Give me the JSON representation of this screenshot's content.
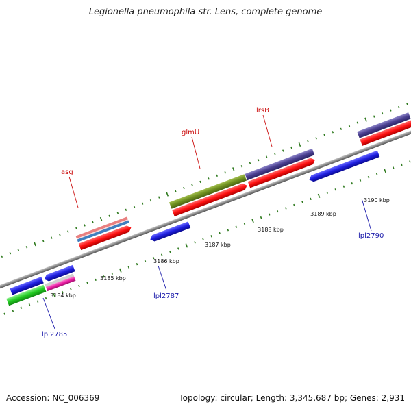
{
  "title": "Legionella pneumophila str. Lens, complete genome",
  "footer": {
    "accession": "Accession: NC_006369",
    "summary": "Topology: circular; Length: 3,345,687 bp; Genes: 2,931"
  },
  "colors": {
    "backbone": "#8c8c8c",
    "tick": "#2f7a1f",
    "label_top": "#cc1111",
    "label_bottom": "#1a1aaa",
    "cds_red": "#ff1111",
    "gene_blue": "#1f1fe0",
    "olive": "#6e8f1f",
    "navy": "#4a3f90",
    "pink": "#e98080",
    "steel": "#3f7fbf",
    "green": "#22cc22",
    "magenta": "#ee1ea6"
  },
  "scale_labels": [
    "3184 kbp",
    "3185 kbp",
    "3186 kbp",
    "3187 kbp",
    "3188 kbp",
    "3189 kbp",
    "3190 kbp"
  ],
  "gene_labels": {
    "asg": "asg",
    "glmU": "glmU",
    "lrsB": "lrsB",
    "lpl2785": "lpl2785",
    "lpl2787": "lpl2787",
    "lpl2790": "lpl2790"
  }
}
